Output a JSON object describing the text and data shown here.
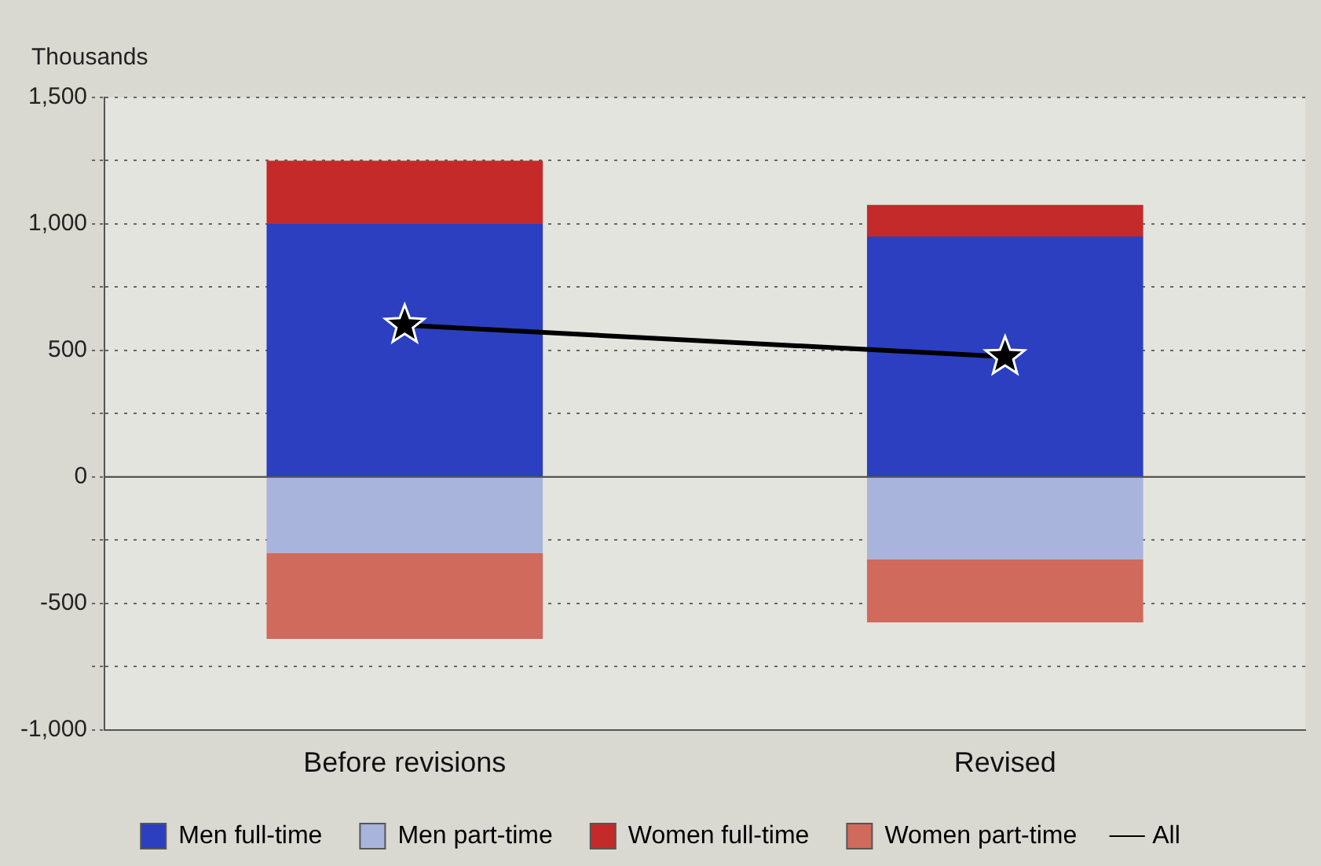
{
  "chart_data": {
    "type": "bar",
    "ylabel": "Thousands",
    "categories": [
      "Before revisions",
      "Revised"
    ],
    "stacked": true,
    "series": [
      {
        "name": "Men full-time",
        "color": "#2b3fc0",
        "values": [
          1000,
          950
        ]
      },
      {
        "name": "Men part-time",
        "color": "#a9b4dc",
        "values": [
          -300,
          -325
        ]
      },
      {
        "name": "Women full-time",
        "color": "#c42a2a",
        "values": [
          250,
          125
        ]
      },
      {
        "name": "Women part-time",
        "color": "#cf6a5c",
        "values": [
          -340,
          -250
        ]
      },
      {
        "name": "All",
        "type": "line",
        "color": "#000000",
        "marker": "star",
        "values": [
          600,
          475
        ]
      }
    ],
    "ylim": [
      -1000,
      1500
    ],
    "yticks": [
      {
        "value": -1000,
        "label": "-1,000"
      },
      {
        "value": -750,
        "label": null
      },
      -500,
      {
        "value": -250,
        "label": null
      },
      0,
      {
        "value": 250,
        "label": null
      },
      500,
      {
        "value": 750,
        "label": null
      },
      {
        "value": 1000,
        "label": "1,000"
      },
      {
        "value": 1250,
        "label": null
      },
      {
        "value": 1500,
        "label": "1,500"
      }
    ],
    "ref_lines": [
      {
        "axis": "y",
        "value": 0,
        "color": "#555555"
      }
    ],
    "grid": "y",
    "legend": "bottom"
  }
}
